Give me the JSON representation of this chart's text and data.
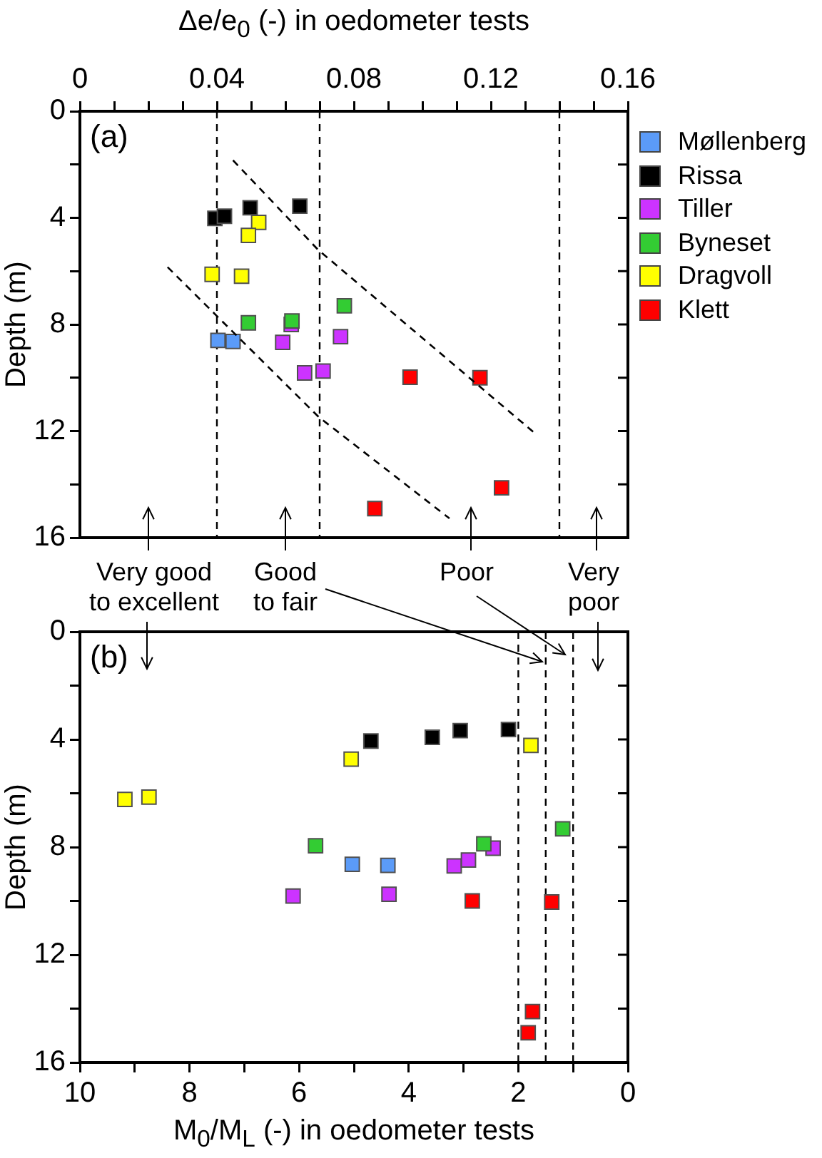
{
  "chart_data": [
    {
      "type": "scatter",
      "xlabel": "Δe/e$_{0}$ (-) in oedometer tests",
      "ylabel": "Depth (m)",
      "xlim": [
        0,
        0.16
      ],
      "ylim": [
        16,
        0
      ],
      "xticks": [
        0,
        {
          "value": 0.01,
          "label": null
        },
        {
          "value": 0.02,
          "label": null
        },
        {
          "value": 0.03,
          "label": null
        },
        0.04,
        {
          "value": 0.05,
          "label": null
        },
        {
          "value": 0.06,
          "label": null
        },
        {
          "value": 0.07,
          "label": null
        },
        0.08,
        {
          "value": 0.09,
          "label": null
        },
        {
          "value": 0.1,
          "label": null
        },
        {
          "value": 0.11,
          "label": null
        },
        0.12,
        {
          "value": 0.13,
          "label": null
        },
        {
          "value": 0.14,
          "label": null
        },
        {
          "value": 0.15,
          "label": null
        },
        0.16
      ],
      "yticks": [
        0,
        {
          "value": 2,
          "label": null
        },
        4,
        {
          "value": 6,
          "label": null
        },
        8,
        {
          "value": 10,
          "label": null
        },
        12,
        {
          "value": 14,
          "label": null
        },
        16
      ],
      "grid": false,
      "legend": "right",
      "marker": "square",
      "series": [
        {
          "name": "Møllenberg",
          "color": "#5b9bf8",
          "x": [
            0.0403,
            0.0447
          ],
          "values": [
            8.6,
            8.64
          ]
        },
        {
          "name": "Rissa",
          "color": "#000000",
          "x": [
            0.0394,
            0.0422,
            0.0497,
            0.0642
          ],
          "values": [
            4.02,
            3.94,
            3.62,
            3.56
          ]
        },
        {
          "name": "Tiller",
          "color": "#cc33ff",
          "x": [
            0.0592,
            0.0761,
            0.0656,
            0.071,
            0.0617
          ],
          "values": [
            8.67,
            8.46,
            9.82,
            9.75,
            8.0
          ]
        },
        {
          "name": "Byneset",
          "color": "#33cc33",
          "x": [
            0.0772,
            0.0492,
            0.0619
          ],
          "values": [
            7.3,
            7.94,
            7.87
          ]
        },
        {
          "name": "Dragvoll",
          "color": "#ffff00",
          "x": [
            0.0522,
            0.0492,
            0.0386,
            0.0472
          ],
          "values": [
            4.17,
            4.66,
            6.12,
            6.19
          ]
        },
        {
          "name": "Klett",
          "color": "#ff0000",
          "x": [
            0.0964,
            0.1168,
            0.0861,
            0.1231
          ],
          "values": [
            9.98,
            10.0,
            14.91,
            14.13
          ]
        },
        {
          "type": "line",
          "color": "#000000",
          "marker": "none",
          "line_style": "dashed",
          "x": [
            0.0447,
            0.0694,
            0.1329
          ],
          "values": [
            1.84,
            5.18,
            12.09
          ]
        },
        {
          "type": "line",
          "color": "#000000",
          "marker": "none",
          "line_style": "dashed",
          "x": [
            0.0256,
            0.0697,
            0.1079
          ],
          "values": [
            5.85,
            11.47,
            15.28
          ]
        }
      ],
      "ref_lines": [
        {
          "axis": "x",
          "value": 0.04,
          "line_style": "dashed",
          "color": "#000000"
        },
        {
          "axis": "x",
          "value": 0.07,
          "line_style": "dashed",
          "color": "#000000"
        },
        {
          "axis": "x",
          "value": 0.14,
          "line_style": "dashed",
          "color": "#000000"
        }
      ],
      "annotations": [
        "(a)",
        "Very good\nto excellent",
        "Good\nto fair",
        "Poor",
        "Very\npoor"
      ]
    },
    {
      "type": "scatter",
      "xlabel": "M$_{0}$/M$_{L}$ (-) in oedometer tests",
      "ylabel": "Depth (m)",
      "xlim": [
        10,
        0
      ],
      "ylim": [
        16,
        0
      ],
      "xticks": [
        10,
        {
          "value": 9,
          "label": null
        },
        8,
        {
          "value": 7,
          "label": null
        },
        6,
        {
          "value": 5,
          "label": null
        },
        4,
        {
          "value": 3,
          "label": null
        },
        2,
        {
          "value": 1,
          "label": null
        },
        0
      ],
      "yticks": [
        0,
        {
          "value": 2,
          "label": null
        },
        4,
        {
          "value": 6,
          "label": null
        },
        8,
        {
          "value": 10,
          "label": null
        },
        12,
        {
          "value": 14,
          "label": null
        },
        16
      ],
      "grid": false,
      "marker": "square",
      "series": [
        {
          "color": "#5b9bf8",
          "x": [
            5.03,
            4.38
          ],
          "values": [
            8.64,
            8.68
          ]
        },
        {
          "color": "#000000",
          "x": [
            4.69,
            3.57,
            3.06,
            2.18
          ],
          "values": [
            4.06,
            3.92,
            3.67,
            3.63
          ]
        },
        {
          "color": "#cc33ff",
          "x": [
            6.11,
            4.36,
            3.17,
            2.91,
            2.46
          ],
          "values": [
            9.82,
            9.75,
            8.7,
            8.48,
            8.04
          ]
        },
        {
          "color": "#33cc33",
          "x": [
            5.7,
            2.63,
            1.19
          ],
          "values": [
            7.95,
            7.88,
            7.32
          ]
        },
        {
          "color": "#ffff00",
          "x": [
            1.77,
            5.05,
            9.18,
            8.74
          ],
          "values": [
            4.22,
            4.73,
            6.23,
            6.14
          ]
        },
        {
          "color": "#ff0000",
          "x": [
            2.84,
            1.39,
            1.74,
            1.82
          ],
          "values": [
            10.0,
            10.04,
            14.11,
            14.9
          ]
        }
      ],
      "ref_lines": [
        {
          "axis": "x",
          "value": 2,
          "line_style": "dashed",
          "color": "#000000"
        },
        {
          "axis": "x",
          "value": 1.5,
          "line_style": "dashed",
          "color": "#000000"
        },
        {
          "axis": "x",
          "value": 1,
          "line_style": "dashed",
          "color": "#000000"
        }
      ],
      "annotations": [
        "(b)"
      ]
    }
  ]
}
